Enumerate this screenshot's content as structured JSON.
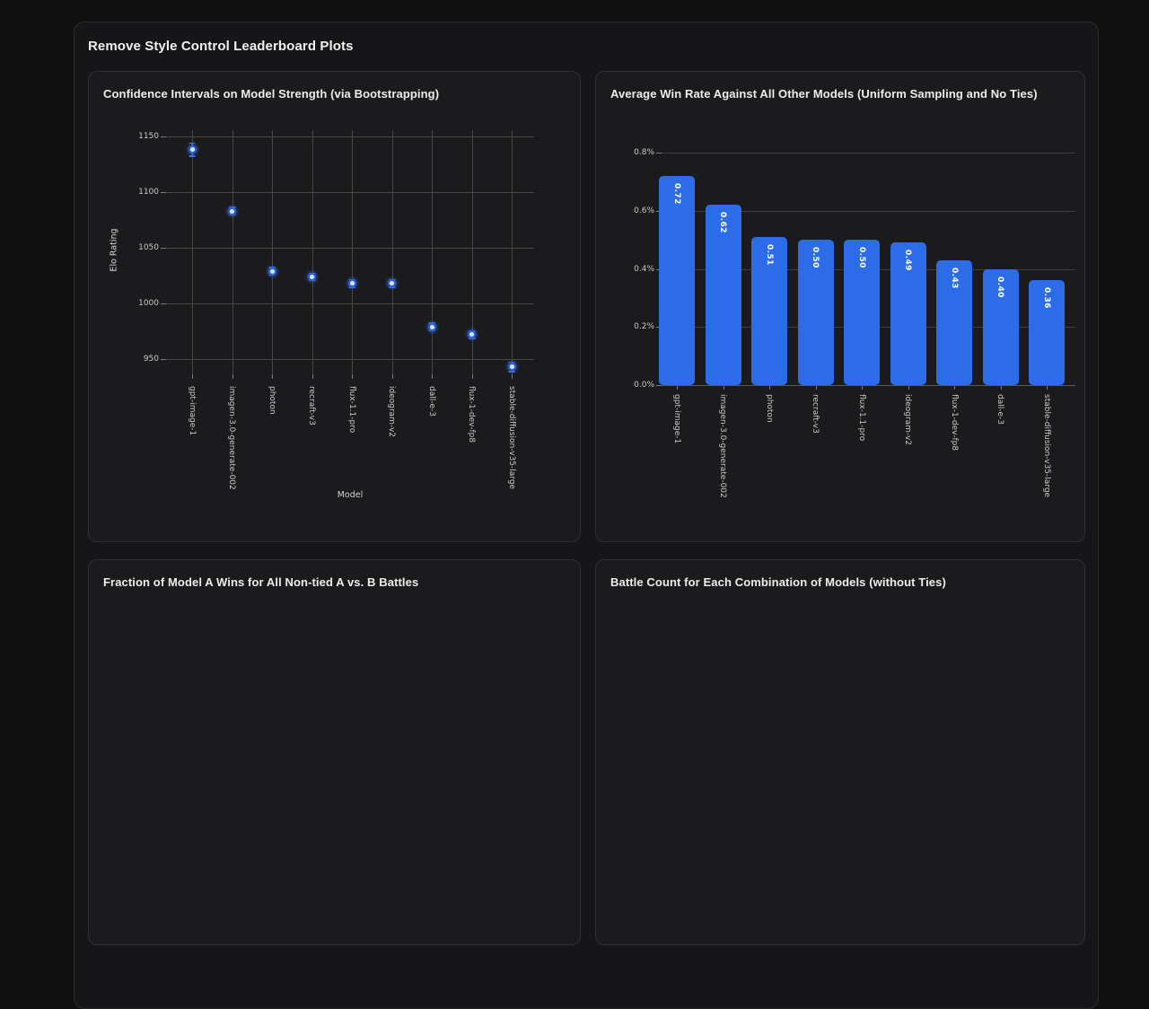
{
  "page": {
    "title": "Remove Style Control Leaderboard Plots"
  },
  "colors": {
    "bar_fill": "#2c6ce8",
    "marker_edge": "#2f62d8",
    "marker_center": "#d9e6ff",
    "error_bar": "#3a6fe0",
    "grid_scatter": "#474747",
    "grid_bar": "#3e3e40",
    "baseline": "#59595c",
    "tick_text": "#c9c9c9"
  },
  "panels": {
    "ci": {
      "title": "Confidence Intervals on Model Strength (via Bootstrapping)"
    },
    "winrate": {
      "title": "Average Win Rate Against All Other Models (Uniform Sampling and No Ties)"
    },
    "fraction": {
      "title": "Fraction of Model A Wins for All Non-tied A vs. B Battles"
    },
    "battles": {
      "title": "Battle Count for Each Combination of Models (without Ties)"
    }
  },
  "chart_data": [
    {
      "type": "scatter",
      "title": "Confidence Intervals on Model Strength (via Bootstrapping)",
      "xlabel": "Model",
      "ylabel": "Elo Rating",
      "categories": [
        "gpt-image-1",
        "imagen-3.0-generate-002",
        "photon",
        "recraft-v3",
        "flux-1.1-pro",
        "ideogram-v2",
        "dall-e-3",
        "flux-1-dev-fp8",
        "stable-diffusion-v35-large"
      ],
      "values": [
        1139,
        1083,
        1029,
        1024,
        1018,
        1018,
        979,
        972,
        943
      ],
      "ci_low": [
        1132,
        1079,
        1025,
        1020,
        1014,
        1014,
        975,
        968,
        938
      ],
      "ci_high": [
        1145,
        1087,
        1033,
        1028,
        1022,
        1022,
        983,
        976,
        948
      ],
      "yticks": [
        950,
        1000,
        1050,
        1100,
        1150
      ],
      "ylim": [
        938,
        1156
      ],
      "grid": true,
      "legend": "none"
    },
    {
      "type": "bar",
      "title": "Average Win Rate Against All Other Models (Uniform Sampling and No Ties)",
      "xlabel": "",
      "ylabel": "",
      "categories": [
        "gpt-image-1",
        "imagen-3.0-generate-002",
        "photon",
        "recraft-v3",
        "flux-1.1-pro",
        "ideogram-v2",
        "flux-1-dev-fp8",
        "dall-e-3",
        "stable-diffusion-v35-large"
      ],
      "values": [
        0.72,
        0.62,
        0.51,
        0.5,
        0.5,
        0.49,
        0.43,
        0.4,
        0.36
      ],
      "bar_labels": [
        "0.72",
        "0.62",
        "0.51",
        "0.50",
        "0.50",
        "0.49",
        "0.43",
        "0.40",
        "0.36"
      ],
      "yticks": [
        0,
        0.2,
        0.4,
        0.6,
        0.8
      ],
      "ytick_labels": [
        "0.0%",
        "0.2%",
        "0.4%",
        "0.6%",
        "0.8%"
      ],
      "ylim": [
        0,
        0.83
      ],
      "grid": true,
      "legend": "none"
    }
  ]
}
